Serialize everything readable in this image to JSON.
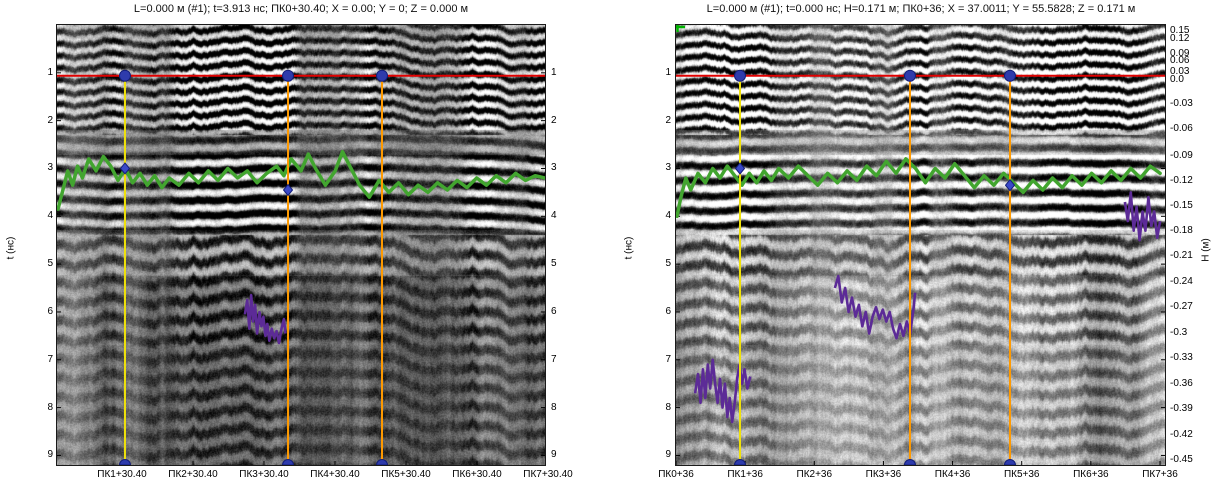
{
  "colors": {
    "time_marker_red": "#e10000",
    "picket_yellow": "#efe10a",
    "picket_orange": "#ff9a00",
    "marker_blue_fill": "#2e3bac",
    "marker_blue_stroke": "#131d78",
    "layer_green": "#42a52f",
    "anomaly_purple": "#5c2b97",
    "corner_mark_green": "#00b400"
  },
  "chart_data": [
    {
      "type": "heatmap",
      "title": "L=0.000 м (#1); t=3.913 нс; ПК0+30.40; X = 0.00; Y = 0; Z = 0.000 м",
      "y_axis": {
        "label": "t (нс)",
        "range": [
          0,
          9.2
        ],
        "ticks": [
          1,
          2,
          3,
          4,
          5,
          6,
          7,
          8,
          9
        ]
      },
      "y_axis_right": {
        "ticks": [
          1,
          2,
          3,
          4,
          5,
          6,
          7,
          8,
          9
        ]
      },
      "x_axis": {
        "labels": [
          "ПК1+30.40",
          "ПК2+30.40",
          "ПК3+30.40",
          "ПК4+30.40",
          "ПК5+30.40",
          "ПК6+30.40",
          "ПК7+30.40"
        ],
        "first_frac": 0.1332,
        "step_frac": 0.1455
      },
      "overlays": {
        "time_marker_line": {
          "t": 1.06
        },
        "picket_lines": [
          {
            "x_frac": 0.1393,
            "color": "yellow"
          },
          {
            "x_frac": 0.4734,
            "color": "orange"
          },
          {
            "x_frac": 0.666,
            "color": "orange"
          }
        ],
        "layer_markers": [
          {
            "x_frac": 0.1393,
            "t": 3.0
          },
          {
            "x_frac": 0.4734,
            "t": 3.45
          }
        ],
        "corner_mark": false,
        "green_trace": {
          "points": [
            [
              0.002,
              3.85
            ],
            [
              0.012,
              3.45
            ],
            [
              0.022,
              3.05
            ],
            [
              0.032,
              3.35
            ],
            [
              0.042,
              2.95
            ],
            [
              0.052,
              3.2
            ],
            [
              0.065,
              2.8
            ],
            [
              0.08,
              3.05
            ],
            [
              0.095,
              2.75
            ],
            [
              0.11,
              2.95
            ],
            [
              0.125,
              3.25
            ],
            [
              0.14,
              3.0
            ],
            [
              0.155,
              3.3
            ],
            [
              0.17,
              3.1
            ],
            [
              0.185,
              3.35
            ],
            [
              0.2,
              3.15
            ],
            [
              0.215,
              3.4
            ],
            [
              0.23,
              3.2
            ],
            [
              0.25,
              3.35
            ],
            [
              0.27,
              3.1
            ],
            [
              0.29,
              3.3
            ],
            [
              0.31,
              3.05
            ],
            [
              0.33,
              3.25
            ],
            [
              0.35,
              3.0
            ],
            [
              0.37,
              3.2
            ],
            [
              0.39,
              3.05
            ],
            [
              0.41,
              3.3
            ],
            [
              0.43,
              3.1
            ],
            [
              0.45,
              2.95
            ],
            [
              0.465,
              3.15
            ],
            [
              0.48,
              2.8
            ],
            [
              0.5,
              3.05
            ],
            [
              0.515,
              2.7
            ],
            [
              0.53,
              3.0
            ],
            [
              0.55,
              3.35
            ],
            [
              0.57,
              3.05
            ],
            [
              0.585,
              2.65
            ],
            [
              0.6,
              2.95
            ],
            [
              0.62,
              3.35
            ],
            [
              0.64,
              3.6
            ],
            [
              0.66,
              3.25
            ],
            [
              0.68,
              3.5
            ],
            [
              0.7,
              3.3
            ],
            [
              0.72,
              3.55
            ],
            [
              0.74,
              3.35
            ],
            [
              0.76,
              3.5
            ],
            [
              0.78,
              3.3
            ],
            [
              0.8,
              3.45
            ],
            [
              0.82,
              3.25
            ],
            [
              0.84,
              3.4
            ],
            [
              0.86,
              3.2
            ],
            [
              0.88,
              3.35
            ],
            [
              0.9,
              3.15
            ],
            [
              0.92,
              3.3
            ],
            [
              0.94,
              3.1
            ],
            [
              0.96,
              3.25
            ],
            [
              0.98,
              3.15
            ],
            [
              1.0,
              3.2
            ]
          ]
        },
        "purple_traces": [
          {
            "points": [
              [
                0.385,
                6.05
              ],
              [
                0.39,
                5.75
              ],
              [
                0.394,
                6.35
              ],
              [
                0.398,
                5.65
              ],
              [
                0.402,
                6.2
              ],
              [
                0.406,
                5.85
              ],
              [
                0.41,
                6.45
              ],
              [
                0.415,
                6.0
              ],
              [
                0.419,
                6.3
              ],
              [
                0.423,
                6.1
              ],
              [
                0.427,
                6.5
              ],
              [
                0.431,
                6.25
              ],
              [
                0.435,
                6.6
              ],
              [
                0.44,
                6.35
              ],
              [
                0.445,
                6.55
              ],
              [
                0.45,
                6.4
              ],
              [
                0.455,
                6.65
              ],
              [
                0.46,
                6.35
              ],
              [
                0.465,
                6.15
              ],
              [
                0.468,
                6.45
              ]
            ]
          }
        ]
      },
      "texture_seed": 1337
    },
    {
      "type": "heatmap",
      "title": "L=0.000 м (#1); t=0.000 нс; H=0.171 м; ПК0+36; X = 37.0011; Y = 55.5828; Z = 0.171 м",
      "y_axis": {
        "label": "t (нс)",
        "range": [
          0,
          9.2
        ],
        "ticks": [
          1,
          2,
          3,
          4,
          5,
          6,
          7,
          8,
          9
        ]
      },
      "y_axis_right": {
        "label": "H (м)",
        "ticks_h": [
          {
            "v": "0.15",
            "f": 0.011
          },
          {
            "v": "0.12",
            "f": 0.03
          },
          {
            "v": "0.09",
            "f": 0.064
          },
          {
            "v": "0.06",
            "f": 0.08
          },
          {
            "v": "0.03",
            "f": 0.105
          },
          {
            "v": "0.0",
            "f": 0.123
          },
          {
            "v": "-0.03",
            "f": 0.177
          },
          {
            "v": "-0.06",
            "f": 0.234
          },
          {
            "v": "-0.09",
            "f": 0.295
          },
          {
            "v": "-0.12",
            "f": 0.352
          },
          {
            "v": "-0.15",
            "f": 0.409
          },
          {
            "v": "-0.18",
            "f": 0.466
          },
          {
            "v": "-0.21",
            "f": 0.523
          },
          {
            "v": "-0.24",
            "f": 0.582
          },
          {
            "v": "-0.27",
            "f": 0.639
          },
          {
            "v": "-0.3",
            "f": 0.698
          },
          {
            "v": "-0.33",
            "f": 0.755
          },
          {
            "v": "-0.36",
            "f": 0.814
          },
          {
            "v": "-0.39",
            "f": 0.87
          },
          {
            "v": "-0.42",
            "f": 0.93
          },
          {
            "v": "-0.45",
            "f": 0.986
          }
        ]
      },
      "x_axis": {
        "labels": [
          "ПК0+36",
          "ПК1+36",
          "ПК2+36",
          "ПК3+36",
          "ПК4+36",
          "ПК5+36",
          "ПК6+36",
          "ПК7+36"
        ],
        "first_frac": 0.0,
        "step_frac": 0.1414
      },
      "overlays": {
        "time_marker_line": {
          "t": 1.06
        },
        "picket_lines": [
          {
            "x_frac": 0.1309,
            "color": "yellow"
          },
          {
            "x_frac": 0.4785,
            "color": "orange"
          },
          {
            "x_frac": 0.683,
            "color": "orange"
          }
        ],
        "layer_markers": [
          {
            "x_frac": 0.1309,
            "t": 3.0
          },
          {
            "x_frac": 0.683,
            "t": 3.35
          }
        ],
        "corner_mark": true,
        "green_trace": {
          "points": [
            [
              0.002,
              4.0
            ],
            [
              0.01,
              3.6
            ],
            [
              0.02,
              3.2
            ],
            [
              0.03,
              3.45
            ],
            [
              0.045,
              3.1
            ],
            [
              0.06,
              3.3
            ],
            [
              0.075,
              3.0
            ],
            [
              0.09,
              3.2
            ],
            [
              0.105,
              2.95
            ],
            [
              0.12,
              3.15
            ],
            [
              0.135,
              3.35
            ],
            [
              0.15,
              3.1
            ],
            [
              0.165,
              3.3
            ],
            [
              0.18,
              3.05
            ],
            [
              0.195,
              3.25
            ],
            [
              0.21,
              3.0
            ],
            [
              0.23,
              3.2
            ],
            [
              0.25,
              2.95
            ],
            [
              0.27,
              3.15
            ],
            [
              0.29,
              3.35
            ],
            [
              0.31,
              3.1
            ],
            [
              0.33,
              3.3
            ],
            [
              0.35,
              3.05
            ],
            [
              0.37,
              3.25
            ],
            [
              0.39,
              2.95
            ],
            [
              0.41,
              3.15
            ],
            [
              0.43,
              2.85
            ],
            [
              0.45,
              3.1
            ],
            [
              0.47,
              2.8
            ],
            [
              0.49,
              3.0
            ],
            [
              0.51,
              3.3
            ],
            [
              0.53,
              3.0
            ],
            [
              0.55,
              3.2
            ],
            [
              0.57,
              2.9
            ],
            [
              0.59,
              3.15
            ],
            [
              0.61,
              3.4
            ],
            [
              0.63,
              3.15
            ],
            [
              0.65,
              3.35
            ],
            [
              0.67,
              3.1
            ],
            [
              0.69,
              3.3
            ],
            [
              0.71,
              3.5
            ],
            [
              0.73,
              3.25
            ],
            [
              0.75,
              3.45
            ],
            [
              0.77,
              3.2
            ],
            [
              0.79,
              3.4
            ],
            [
              0.81,
              3.15
            ],
            [
              0.83,
              3.35
            ],
            [
              0.85,
              3.1
            ],
            [
              0.87,
              3.3
            ],
            [
              0.89,
              3.05
            ],
            [
              0.91,
              3.25
            ],
            [
              0.93,
              3.0
            ],
            [
              0.95,
              3.2
            ],
            [
              0.97,
              2.95
            ],
            [
              0.99,
              3.1
            ]
          ]
        },
        "purple_traces": [
          {
            "points": [
              [
                0.039,
                7.7
              ],
              [
                0.045,
                7.3
              ],
              [
                0.05,
                7.9
              ],
              [
                0.055,
                7.2
              ],
              [
                0.06,
                7.8
              ],
              [
                0.065,
                7.1
              ],
              [
                0.07,
                7.6
              ],
              [
                0.075,
                7.0
              ],
              [
                0.08,
                7.5
              ],
              [
                0.085,
                7.9
              ],
              [
                0.09,
                7.4
              ],
              [
                0.095,
                8.0
              ],
              [
                0.1,
                7.5
              ],
              [
                0.105,
                8.2
              ],
              [
                0.11,
                7.8
              ],
              [
                0.115,
                8.3
              ],
              [
                0.12,
                7.9
              ],
              [
                0.125,
                7.4
              ],
              [
                0.13,
                7.1
              ],
              [
                0.135,
                7.5
              ],
              [
                0.14,
                7.2
              ],
              [
                0.146,
                7.6
              ],
              [
                0.152,
                7.35
              ]
            ]
          },
          {
            "points": [
              [
                0.325,
                5.5
              ],
              [
                0.332,
                5.25
              ],
              [
                0.339,
                5.8
              ],
              [
                0.346,
                5.5
              ],
              [
                0.353,
                6.0
              ],
              [
                0.36,
                5.7
              ],
              [
                0.367,
                6.1
              ],
              [
                0.374,
                5.85
              ],
              [
                0.381,
                6.3
              ],
              [
                0.388,
                6.0
              ],
              [
                0.395,
                6.45
              ],
              [
                0.402,
                6.1
              ],
              [
                0.409,
                5.9
              ],
              [
                0.416,
                6.15
              ],
              [
                0.423,
                5.95
              ],
              [
                0.43,
                6.2
              ],
              [
                0.437,
                6.0
              ],
              [
                0.444,
                6.35
              ],
              [
                0.451,
                6.55
              ],
              [
                0.458,
                6.25
              ],
              [
                0.465,
                6.5
              ],
              [
                0.472,
                6.2
              ],
              [
                0.479,
                6.45
              ],
              [
                0.486,
                5.9
              ],
              [
                0.489,
                5.6
              ]
            ]
          },
          {
            "points": [
              [
                0.918,
                3.7
              ],
              [
                0.924,
                4.1
              ],
              [
                0.93,
                3.5
              ],
              [
                0.936,
                4.3
              ],
              [
                0.942,
                3.8
              ],
              [
                0.948,
                4.5
              ],
              [
                0.954,
                3.9
              ],
              [
                0.96,
                4.3
              ],
              [
                0.966,
                3.6
              ],
              [
                0.972,
                4.2
              ],
              [
                0.978,
                3.9
              ],
              [
                0.984,
                4.45
              ],
              [
                0.99,
                4.1
              ]
            ]
          }
        ]
      },
      "texture_seed": 7721
    }
  ]
}
